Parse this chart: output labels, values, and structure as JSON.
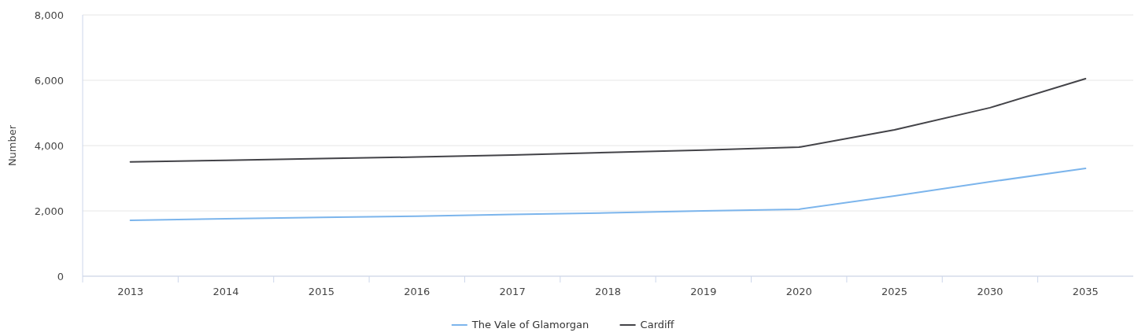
{
  "chart_data": {
    "type": "line",
    "ylabel": "Number",
    "categories": [
      "2013",
      "2014",
      "2015",
      "2016",
      "2017",
      "2018",
      "2019",
      "2020",
      "2025",
      "2030",
      "2035"
    ],
    "series": [
      {
        "name": "The Vale of Glamorgan",
        "color": "#7cb5ec",
        "values": [
          1710,
          1760,
          1800,
          1840,
          1890,
          1940,
          2000,
          2050,
          2460,
          2890,
          3300
        ]
      },
      {
        "name": "Cardiff",
        "color": "#434348",
        "values": [
          3500,
          3550,
          3600,
          3650,
          3710,
          3790,
          3860,
          3950,
          4480,
          5160,
          6050
        ]
      }
    ],
    "ylim": [
      0,
      8000
    ],
    "yticks": [
      {
        "value": 0,
        "label": "0"
      },
      {
        "value": 2000,
        "label": "2,000"
      },
      {
        "value": 4000,
        "label": "4,000"
      },
      {
        "value": 6000,
        "label": "6,000"
      },
      {
        "value": 8000,
        "label": "8,000"
      }
    ],
    "grid": "y",
    "legend": "bottom",
    "marker": "none",
    "line_style": "solid"
  }
}
